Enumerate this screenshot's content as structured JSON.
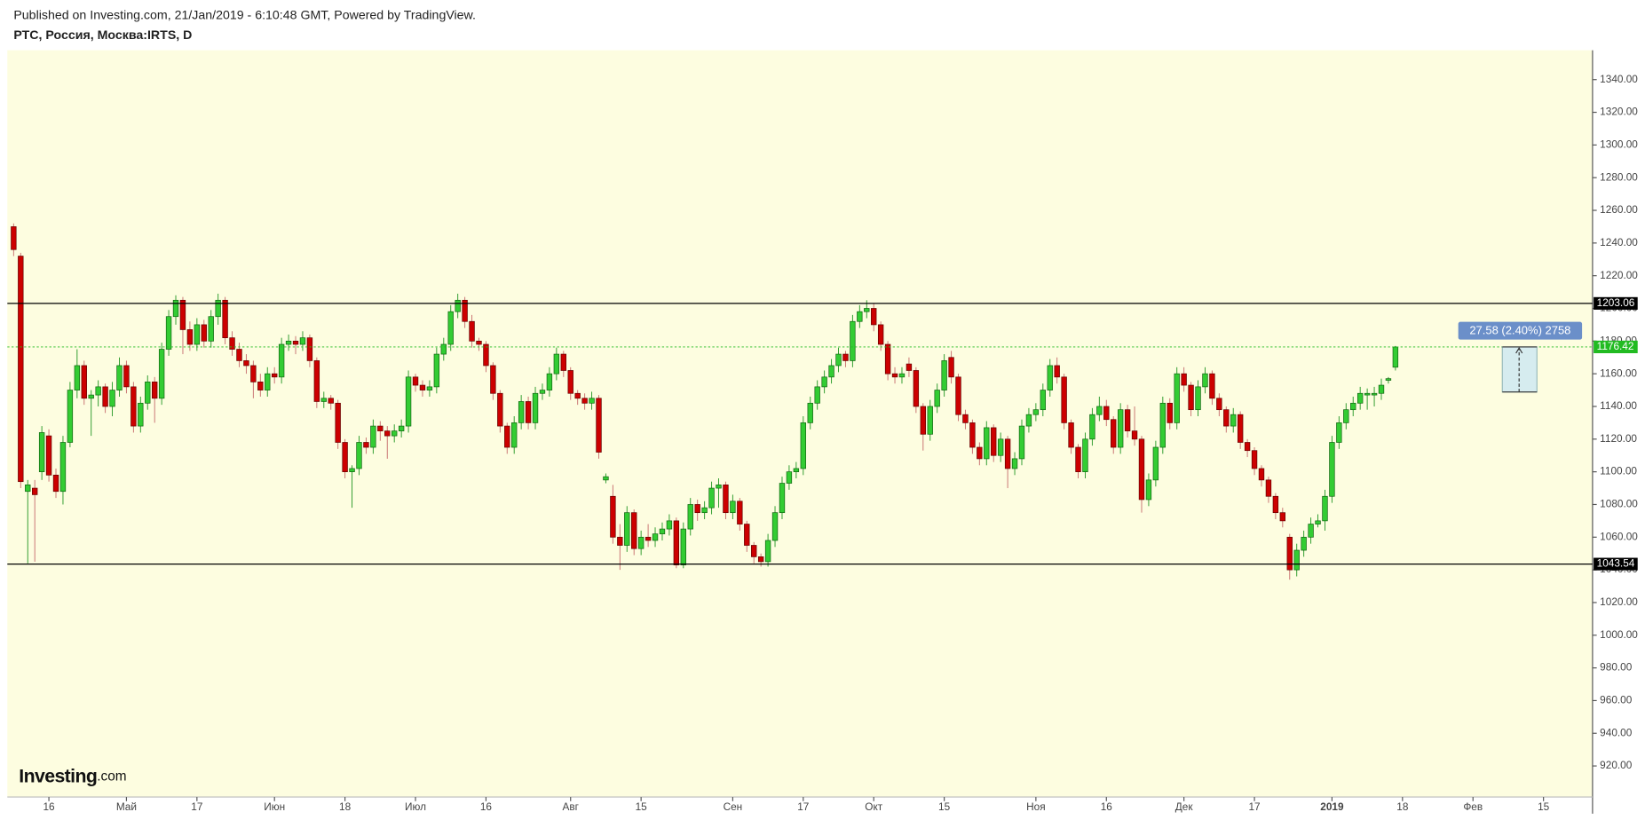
{
  "chart_data": {
    "type": "candlestick",
    "published": "Published on Investing.com, 21/Jan/2019 - 6:10:48 GMT, Powered by TradingView.",
    "title": "РТС, Россия, Москва:IRTS, D",
    "logo": {
      "name": "Investing",
      "suffix": ".com"
    },
    "up_color": "#33cc33",
    "down_color": "#cc0000",
    "background": "#fdfde0",
    "ylim": [
      901,
      1358
    ],
    "yticks": [
      {
        "value": 1340,
        "label": "1340.00"
      },
      {
        "value": 1320,
        "label": "1320.00"
      },
      {
        "value": 1300,
        "label": "1300.00"
      },
      {
        "value": 1280,
        "label": "1280.00"
      },
      {
        "value": 1260,
        "label": "1260.00"
      },
      {
        "value": 1240,
        "label": "1240.00"
      },
      {
        "value": 1220,
        "label": "1220.00"
      },
      {
        "value": 1200,
        "label": "1200.00"
      },
      {
        "value": 1180,
        "label": "1180.00"
      },
      {
        "value": 1160,
        "label": "1160.00"
      },
      {
        "value": 1140,
        "label": "1140.00"
      },
      {
        "value": 1120,
        "label": "1120.00"
      },
      {
        "value": 1100,
        "label": "1100.00"
      },
      {
        "value": 1080,
        "label": "1080.00"
      },
      {
        "value": 1060,
        "label": "1060.00"
      },
      {
        "value": 1040,
        "label": "1040.00"
      },
      {
        "value": 1020,
        "label": "1020.00"
      },
      {
        "value": 1000,
        "label": "1000.00"
      },
      {
        "value": 980,
        "label": "980.00"
      },
      {
        "value": 960,
        "label": "960.00"
      },
      {
        "value": 940,
        "label": "940.00"
      },
      {
        "value": 920,
        "label": "920.00"
      }
    ],
    "xticks": [
      {
        "value": 5,
        "label": "16"
      },
      {
        "value": 16,
        "label": "Май"
      },
      {
        "value": 26,
        "label": "17"
      },
      {
        "value": 37,
        "label": "Июн"
      },
      {
        "value": 47,
        "label": "18"
      },
      {
        "value": 57,
        "label": "Июл"
      },
      {
        "value": 67,
        "label": "16"
      },
      {
        "value": 79,
        "label": "Авг"
      },
      {
        "value": 89,
        "label": "15"
      },
      {
        "value": 102,
        "label": "Сен"
      },
      {
        "value": 112,
        "label": "17"
      },
      {
        "value": 122,
        "label": "Окт"
      },
      {
        "value": 132,
        "label": "15"
      },
      {
        "value": 145,
        "label": "Ноя"
      },
      {
        "value": 155,
        "label": "16"
      },
      {
        "value": 166,
        "label": "Дек"
      },
      {
        "value": 176,
        "label": "17"
      },
      {
        "value": 187,
        "label": "2019"
      },
      {
        "value": 197,
        "label": "18"
      },
      {
        "value": 207,
        "label": "Фев"
      },
      {
        "value": 217,
        "label": "15"
      }
    ],
    "levels": [
      1203.06,
      1043.54
    ],
    "measure": {
      "label": "27.58 (2.40%) 2758",
      "from": 1148.84,
      "to": 1176.42
    },
    "candles": [
      [
        1250,
        1252,
        1232,
        1236
      ],
      [
        1232,
        1234,
        1090,
        1094
      ],
      [
        1088,
        1095,
        1044,
        1092
      ],
      [
        1090,
        1095,
        1045,
        1086
      ],
      [
        1100,
        1128,
        1095,
        1124
      ],
      [
        1122,
        1126,
        1094,
        1098
      ],
      [
        1098,
        1102,
        1084,
        1088
      ],
      [
        1088,
        1122,
        1080,
        1118
      ],
      [
        1118,
        1155,
        1115,
        1150
      ],
      [
        1150,
        1175,
        1145,
        1165
      ],
      [
        1165,
        1168,
        1141,
        1145
      ],
      [
        1145,
        1150,
        1122,
        1147
      ],
      [
        1147,
        1156,
        1140,
        1152
      ],
      [
        1152,
        1154,
        1136,
        1140
      ],
      [
        1140,
        1155,
        1134,
        1150
      ],
      [
        1150,
        1170,
        1146,
        1165
      ],
      [
        1165,
        1168,
        1148,
        1152
      ],
      [
        1152,
        1155,
        1124,
        1128
      ],
      [
        1128,
        1146,
        1124,
        1142
      ],
      [
        1142,
        1159,
        1138,
        1155
      ],
      [
        1155,
        1158,
        1130,
        1145
      ],
      [
        1145,
        1179,
        1141,
        1175
      ],
      [
        1175,
        1199,
        1171,
        1195
      ],
      [
        1195,
        1208,
        1190,
        1205
      ],
      [
        1205,
        1207,
        1172,
        1187
      ],
      [
        1187,
        1192,
        1174,
        1178
      ],
      [
        1178,
        1194,
        1174,
        1190
      ],
      [
        1190,
        1193,
        1176,
        1180
      ],
      [
        1180,
        1199,
        1176,
        1195
      ],
      [
        1195,
        1209,
        1190,
        1205
      ],
      [
        1205,
        1207,
        1178,
        1182
      ],
      [
        1182,
        1186,
        1171,
        1175
      ],
      [
        1175,
        1179,
        1164,
        1168
      ],
      [
        1168,
        1172,
        1160,
        1165
      ],
      [
        1165,
        1168,
        1145,
        1155
      ],
      [
        1155,
        1160,
        1146,
        1150
      ],
      [
        1150,
        1164,
        1146,
        1160
      ],
      [
        1160,
        1164,
        1154,
        1158
      ],
      [
        1158,
        1182,
        1154,
        1178
      ],
      [
        1178,
        1184,
        1174,
        1180
      ],
      [
        1180,
        1183,
        1172,
        1178
      ],
      [
        1178,
        1186,
        1174,
        1182
      ],
      [
        1182,
        1184,
        1164,
        1168
      ],
      [
        1168,
        1170,
        1139,
        1143
      ],
      [
        1143,
        1149,
        1139,
        1145
      ],
      [
        1145,
        1147,
        1138,
        1142
      ],
      [
        1142,
        1144,
        1114,
        1118
      ],
      [
        1118,
        1120,
        1096,
        1100
      ],
      [
        1100,
        1104,
        1078,
        1102
      ],
      [
        1102,
        1122,
        1098,
        1118
      ],
      [
        1118,
        1121,
        1111,
        1115
      ],
      [
        1115,
        1132,
        1111,
        1128
      ],
      [
        1128,
        1131,
        1119,
        1125
      ],
      [
        1125,
        1128,
        1108,
        1122
      ],
      [
        1122,
        1129,
        1118,
        1125
      ],
      [
        1125,
        1132,
        1121,
        1128
      ],
      [
        1128,
        1162,
        1124,
        1158
      ],
      [
        1158,
        1160,
        1149,
        1153
      ],
      [
        1153,
        1156,
        1146,
        1150
      ],
      [
        1150,
        1156,
        1146,
        1152
      ],
      [
        1152,
        1176,
        1148,
        1172
      ],
      [
        1172,
        1182,
        1168,
        1178
      ],
      [
        1178,
        1202,
        1174,
        1198
      ],
      [
        1198,
        1209,
        1194,
        1205
      ],
      [
        1205,
        1207,
        1188,
        1192
      ],
      [
        1192,
        1196,
        1176,
        1180
      ],
      [
        1180,
        1182,
        1174,
        1178
      ],
      [
        1178,
        1180,
        1161,
        1165
      ],
      [
        1165,
        1167,
        1144,
        1148
      ],
      [
        1148,
        1150,
        1124,
        1128
      ],
      [
        1128,
        1130,
        1111,
        1115
      ],
      [
        1115,
        1134,
        1111,
        1130
      ],
      [
        1130,
        1147,
        1126,
        1143
      ],
      [
        1143,
        1146,
        1126,
        1130
      ],
      [
        1130,
        1152,
        1126,
        1148
      ],
      [
        1148,
        1154,
        1144,
        1150
      ],
      [
        1150,
        1164,
        1146,
        1160
      ],
      [
        1160,
        1176,
        1156,
        1172
      ],
      [
        1172,
        1174,
        1158,
        1162
      ],
      [
        1162,
        1164,
        1144,
        1148
      ],
      [
        1148,
        1150,
        1141,
        1145
      ],
      [
        1145,
        1148,
        1138,
        1142
      ],
      [
        1142,
        1149,
        1138,
        1145
      ],
      [
        1145,
        1147,
        1108,
        1112
      ],
      [
        1095,
        1099,
        1093,
        1097
      ],
      [
        1085,
        1092,
        1056,
        1060
      ],
      [
        1060,
        1068,
        1040,
        1055
      ],
      [
        1055,
        1079,
        1051,
        1075
      ],
      [
        1075,
        1077,
        1049,
        1053
      ],
      [
        1053,
        1064,
        1049,
        1060
      ],
      [
        1060,
        1068,
        1054,
        1058
      ],
      [
        1058,
        1066,
        1054,
        1062
      ],
      [
        1062,
        1069,
        1058,
        1065
      ],
      [
        1065,
        1074,
        1061,
        1070
      ],
      [
        1070,
        1072,
        1041,
        1043
      ],
      [
        1043,
        1069,
        1041,
        1065
      ],
      [
        1065,
        1084,
        1061,
        1080
      ],
      [
        1080,
        1083,
        1070,
        1075
      ],
      [
        1075,
        1082,
        1071,
        1078
      ],
      [
        1078,
        1094,
        1074,
        1090
      ],
      [
        1090,
        1096,
        1078,
        1092
      ],
      [
        1092,
        1094,
        1071,
        1075
      ],
      [
        1075,
        1086,
        1071,
        1082
      ],
      [
        1082,
        1084,
        1064,
        1068
      ],
      [
        1068,
        1070,
        1051,
        1055
      ],
      [
        1055,
        1057,
        1044,
        1048
      ],
      [
        1048,
        1050,
        1042,
        1045
      ],
      [
        1045,
        1062,
        1042,
        1058
      ],
      [
        1058,
        1079,
        1054,
        1075
      ],
      [
        1075,
        1097,
        1071,
        1093
      ],
      [
        1093,
        1104,
        1089,
        1100
      ],
      [
        1100,
        1106,
        1096,
        1102
      ],
      [
        1102,
        1134,
        1098,
        1130
      ],
      [
        1130,
        1146,
        1126,
        1142
      ],
      [
        1142,
        1156,
        1138,
        1152
      ],
      [
        1152,
        1162,
        1148,
        1158
      ],
      [
        1158,
        1169,
        1154,
        1165
      ],
      [
        1165,
        1176,
        1161,
        1172
      ],
      [
        1172,
        1174,
        1164,
        1168
      ],
      [
        1168,
        1196,
        1164,
        1192
      ],
      [
        1192,
        1202,
        1188,
        1198
      ],
      [
        1198,
        1205,
        1194,
        1200
      ],
      [
        1200,
        1203,
        1186,
        1190
      ],
      [
        1190,
        1192,
        1174,
        1178
      ],
      [
        1178,
        1180,
        1156,
        1160
      ],
      [
        1160,
        1164,
        1154,
        1158
      ],
      [
        1158,
        1164,
        1154,
        1160
      ],
      [
        1166,
        1170,
        1158,
        1162
      ],
      [
        1162,
        1164,
        1136,
        1140
      ],
      [
        1140,
        1142,
        1113,
        1123
      ],
      [
        1123,
        1144,
        1119,
        1140
      ],
      [
        1140,
        1154,
        1136,
        1150
      ],
      [
        1150,
        1172,
        1146,
        1168
      ],
      [
        1170,
        1174,
        1154,
        1158
      ],
      [
        1158,
        1160,
        1131,
        1135
      ],
      [
        1135,
        1138,
        1126,
        1130
      ],
      [
        1130,
        1132,
        1111,
        1115
      ],
      [
        1115,
        1118,
        1104,
        1108
      ],
      [
        1108,
        1131,
        1104,
        1127
      ],
      [
        1127,
        1129,
        1106,
        1110
      ],
      [
        1110,
        1124,
        1106,
        1120
      ],
      [
        1120,
        1122,
        1090,
        1102
      ],
      [
        1102,
        1112,
        1098,
        1108
      ],
      [
        1108,
        1132,
        1104,
        1128
      ],
      [
        1128,
        1139,
        1124,
        1135
      ],
      [
        1135,
        1142,
        1131,
        1138
      ],
      [
        1138,
        1154,
        1134,
        1150
      ],
      [
        1150,
        1169,
        1146,
        1165
      ],
      [
        1165,
        1170,
        1154,
        1158
      ],
      [
        1158,
        1160,
        1126,
        1130
      ],
      [
        1130,
        1132,
        1111,
        1115
      ],
      [
        1115,
        1117,
        1096,
        1100
      ],
      [
        1100,
        1124,
        1096,
        1120
      ],
      [
        1120,
        1139,
        1116,
        1135
      ],
      [
        1135,
        1146,
        1131,
        1140
      ],
      [
        1140,
        1144,
        1128,
        1132
      ],
      [
        1132,
        1134,
        1111,
        1115
      ],
      [
        1115,
        1142,
        1111,
        1138
      ],
      [
        1138,
        1141,
        1121,
        1125
      ],
      [
        1125,
        1140,
        1116,
        1120
      ],
      [
        1120,
        1122,
        1075,
        1083
      ],
      [
        1083,
        1099,
        1079,
        1095
      ],
      [
        1095,
        1119,
        1091,
        1115
      ],
      [
        1115,
        1146,
        1111,
        1142
      ],
      [
        1142,
        1145,
        1126,
        1130
      ],
      [
        1130,
        1164,
        1126,
        1160
      ],
      [
        1160,
        1164,
        1149,
        1153
      ],
      [
        1153,
        1155,
        1134,
        1138
      ],
      [
        1138,
        1156,
        1134,
        1152
      ],
      [
        1152,
        1164,
        1148,
        1160
      ],
      [
        1160,
        1162,
        1141,
        1145
      ],
      [
        1145,
        1148,
        1134,
        1138
      ],
      [
        1138,
        1140,
        1124,
        1128
      ],
      [
        1128,
        1139,
        1124,
        1135
      ],
      [
        1135,
        1137,
        1114,
        1118
      ],
      [
        1118,
        1120,
        1109,
        1113
      ],
      [
        1113,
        1115,
        1098,
        1102
      ],
      [
        1102,
        1104,
        1091,
        1095
      ],
      [
        1095,
        1097,
        1081,
        1085
      ],
      [
        1085,
        1087,
        1071,
        1075
      ],
      [
        1075,
        1078,
        1066,
        1070
      ],
      [
        1060,
        1062,
        1034,
        1040
      ],
      [
        1040,
        1056,
        1036,
        1052
      ],
      [
        1052,
        1064,
        1048,
        1060
      ],
      [
        1060,
        1072,
        1056,
        1068
      ],
      [
        1068,
        1074,
        1066,
        1070
      ],
      [
        1070,
        1089,
        1064,
        1085
      ],
      [
        1085,
        1122,
        1081,
        1118
      ],
      [
        1118,
        1134,
        1114,
        1130
      ],
      [
        1130,
        1142,
        1126,
        1138
      ],
      [
        1138,
        1146,
        1134,
        1142
      ],
      [
        1142,
        1152,
        1138,
        1148
      ],
      [
        1147,
        1151,
        1138,
        1148
      ],
      [
        1147,
        1152,
        1140,
        1148
      ],
      [
        1148,
        1157,
        1144,
        1153
      ],
      [
        1156,
        1158,
        1154,
        1157
      ],
      [
        1164,
        1177,
        1162,
        1176.42
      ]
    ]
  }
}
